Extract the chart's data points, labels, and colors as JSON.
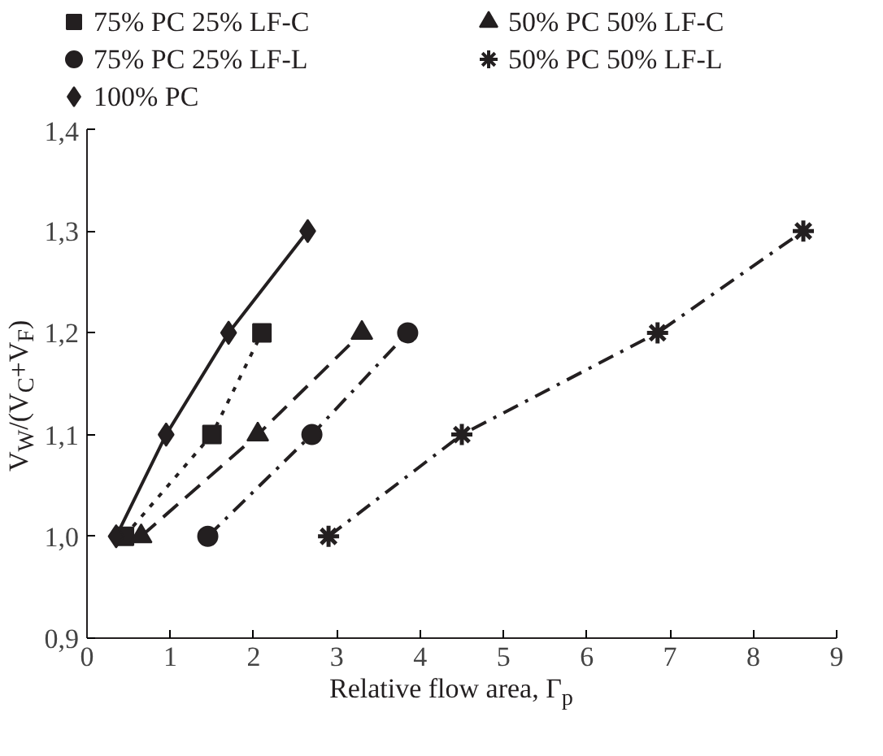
{
  "chart_data": {
    "type": "line",
    "xlabel": "Relative flow area, Γ$_{p}$",
    "ylabel": "V$_{W}$/(V$_{C}$+V$_{F}$)",
    "xlim": [
      0,
      9
    ],
    "xticks": [
      0,
      1,
      2,
      3,
      4,
      5,
      6,
      7,
      8,
      9
    ],
    "ylim": [
      0.9,
      1.4
    ],
    "yticks": [
      {
        "value": 0.9,
        "label": "0,9"
      },
      {
        "value": 1.0,
        "label": "1,0"
      },
      {
        "value": 1.1,
        "label": "1,1"
      },
      {
        "value": 1.2,
        "label": "1,2"
      },
      {
        "value": 1.3,
        "label": "1,3"
      },
      {
        "value": 1.4,
        "label": "1,4"
      }
    ],
    "grid": false,
    "legend": "top",
    "series": [
      {
        "name": "75% PC 25% LF-C",
        "color": "#231f20",
        "marker": "square",
        "line_style": "dotted",
        "x": [
          0.45,
          1.5,
          2.1
        ],
        "values": [
          1.0,
          1.1,
          1.2
        ]
      },
      {
        "name": "75% PC 25% LF-L",
        "color": "#231f20",
        "marker": "circle",
        "line_style": "dashdot",
        "x": [
          1.45,
          2.7,
          3.85
        ],
        "values": [
          1.0,
          1.1,
          1.2
        ]
      },
      {
        "name": "100% PC",
        "color": "#231f20",
        "marker": "diamond",
        "line_style": "solid",
        "x": [
          0.35,
          0.95,
          1.7,
          2.65
        ],
        "values": [
          1.0,
          1.1,
          1.2,
          1.3
        ]
      },
      {
        "name": "50% PC 50% LF-C",
        "color": "#231f20",
        "marker": "triangle",
        "line_style": "dashed",
        "x": [
          0.65,
          2.05,
          3.3
        ],
        "values": [
          1.0,
          1.1,
          1.2
        ]
      },
      {
        "name": "50% PC 50% LF-L",
        "color": "#231f20",
        "marker": "cross",
        "line_style": "dashdot",
        "x": [
          2.9,
          4.5,
          6.85,
          8.6
        ],
        "values": [
          1.0,
          1.1,
          1.2,
          1.3
        ]
      }
    ]
  }
}
